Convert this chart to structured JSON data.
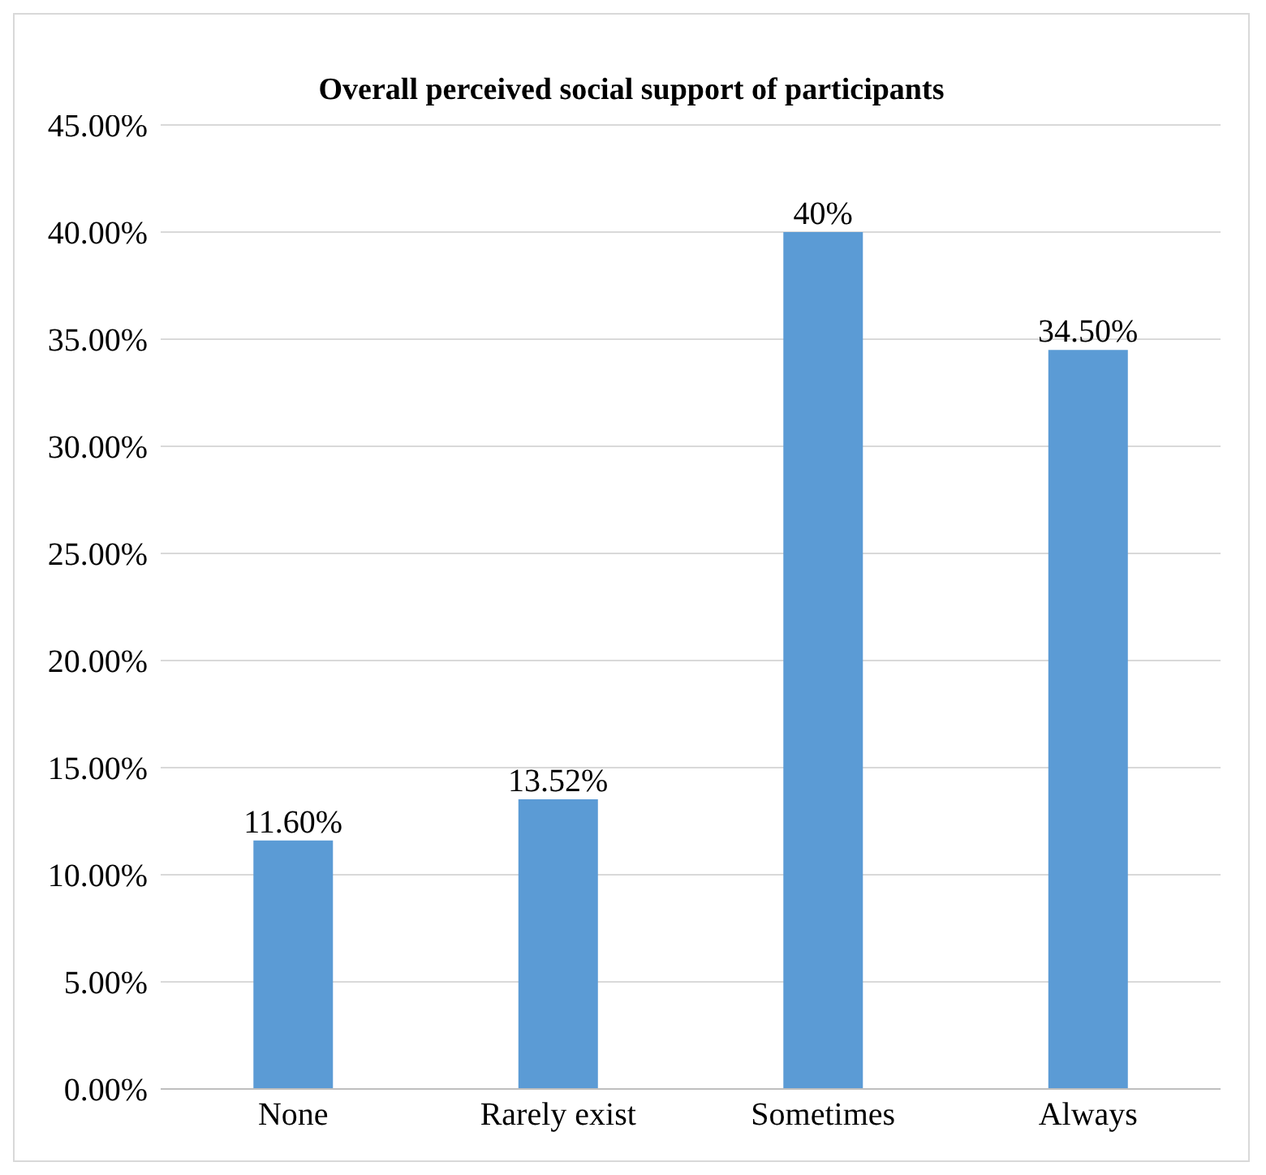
{
  "chart_data": {
    "type": "bar",
    "title": "Overall perceived social support of participants",
    "categories": [
      "None",
      "Rarely exist",
      "Sometimes",
      "Always"
    ],
    "values": [
      11.6,
      13.52,
      40,
      34.5
    ],
    "value_labels": [
      "11.60%",
      "13.52%",
      "40%",
      "34.50%"
    ],
    "color": "#5b9bd5",
    "ylim": [
      0,
      45
    ],
    "yticks": [
      {
        "value": 0,
        "label": "0.00%"
      },
      {
        "value": 5,
        "label": "5.00%"
      },
      {
        "value": 10,
        "label": "10.00%"
      },
      {
        "value": 15,
        "label": "15.00%"
      },
      {
        "value": 20,
        "label": "20.00%"
      },
      {
        "value": 25,
        "label": "25.00%"
      },
      {
        "value": 30,
        "label": "30.00%"
      },
      {
        "value": 35,
        "label": "35.00%"
      },
      {
        "value": 40,
        "label": "40.00%"
      },
      {
        "value": 45,
        "label": "45.00%"
      }
    ],
    "grid": "y"
  }
}
